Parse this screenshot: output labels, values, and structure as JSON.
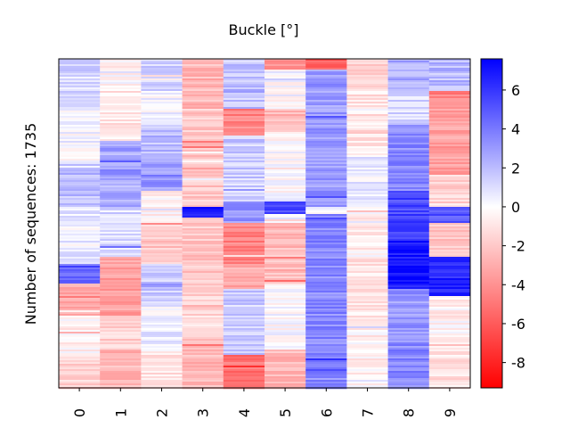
{
  "chart_data": {
    "type": "heatmap",
    "title": "Buckle [°]",
    "ylabel": "Number of sequences: 1735",
    "xlabel": "",
    "columns": [
      "0",
      "1",
      "2",
      "3",
      "4",
      "5",
      "6",
      "7",
      "8",
      "9"
    ],
    "row_count": 1735,
    "colorbar": {
      "min": -9.3,
      "max": 7.6,
      "ticks": [
        6,
        4,
        2,
        0,
        -2,
        -4,
        -6,
        -8
      ],
      "tick_labels": [
        "6",
        "4",
        "2",
        "0",
        "-2",
        "-4",
        "-6",
        "-8"
      ],
      "colors": {
        "low": "#ff0000",
        "mid": "#ffffff",
        "high": "#0000ff"
      }
    },
    "column_profiles": [
      {
        "column": "0",
        "segments": [
          [
            0,
            0.05,
            1.5
          ],
          [
            0.05,
            0.18,
            1.0
          ],
          [
            0.18,
            0.32,
            0.2
          ],
          [
            0.32,
            0.45,
            2.0
          ],
          [
            0.45,
            0.62,
            0.5
          ],
          [
            0.62,
            0.68,
            4.5
          ],
          [
            0.68,
            0.78,
            -3.0
          ],
          [
            0.78,
            0.9,
            -0.5
          ],
          [
            0.9,
            1.0,
            -1.5
          ]
        ]
      },
      {
        "column": "1",
        "segments": [
          [
            0,
            0.1,
            -0.3
          ],
          [
            0.1,
            0.25,
            -0.8
          ],
          [
            0.25,
            0.35,
            3.0
          ],
          [
            0.35,
            0.45,
            2.5
          ],
          [
            0.45,
            0.6,
            1.0
          ],
          [
            0.6,
            0.78,
            -3.5
          ],
          [
            0.78,
            0.88,
            -1.5
          ],
          [
            0.88,
            1.0,
            -2.5
          ]
        ]
      },
      {
        "column": "2",
        "segments": [
          [
            0,
            0.1,
            1.5
          ],
          [
            0.1,
            0.2,
            0.3
          ],
          [
            0.2,
            0.3,
            2.0
          ],
          [
            0.3,
            0.4,
            3.0
          ],
          [
            0.4,
            0.5,
            -0.5
          ],
          [
            0.5,
            0.62,
            -2.0
          ],
          [
            0.62,
            0.75,
            1.5
          ],
          [
            0.75,
            0.88,
            0.5
          ],
          [
            0.88,
            1.0,
            -1.0
          ]
        ]
      },
      {
        "column": "3",
        "segments": [
          [
            0,
            0.15,
            -2.5
          ],
          [
            0.15,
            0.45,
            -2.0
          ],
          [
            0.45,
            0.48,
            7.0
          ],
          [
            0.48,
            0.7,
            -2.0
          ],
          [
            0.7,
            0.85,
            -1.5
          ],
          [
            0.85,
            1.0,
            -2.5
          ]
        ]
      },
      {
        "column": "4",
        "segments": [
          [
            0,
            0.15,
            1.8
          ],
          [
            0.15,
            0.23,
            -4.5
          ],
          [
            0.23,
            0.43,
            1.5
          ],
          [
            0.43,
            0.5,
            3.0
          ],
          [
            0.5,
            0.62,
            -4.5
          ],
          [
            0.62,
            0.7,
            -3.0
          ],
          [
            0.7,
            0.9,
            1.5
          ],
          [
            0.9,
            1.0,
            -5.0
          ]
        ]
      },
      {
        "column": "5",
        "segments": [
          [
            0,
            0.03,
            -4.0
          ],
          [
            0.03,
            0.15,
            0.0
          ],
          [
            0.15,
            0.22,
            -2.5
          ],
          [
            0.22,
            0.43,
            0.0
          ],
          [
            0.43,
            0.47,
            5.5
          ],
          [
            0.47,
            0.5,
            0.0
          ],
          [
            0.5,
            0.68,
            -2.5
          ],
          [
            0.68,
            0.88,
            0.0
          ],
          [
            0.88,
            1.0,
            -2.5
          ]
        ]
      },
      {
        "column": "6",
        "segments": [
          [
            0,
            0.03,
            -6.0
          ],
          [
            0.03,
            0.45,
            3.0
          ],
          [
            0.45,
            0.47,
            0.0
          ],
          [
            0.47,
            1.0,
            3.5
          ]
        ]
      },
      {
        "column": "7",
        "segments": [
          [
            0,
            0.05,
            -2.0
          ],
          [
            0.05,
            0.3,
            -1.0
          ],
          [
            0.3,
            0.45,
            0.5
          ],
          [
            0.45,
            0.6,
            -0.5
          ],
          [
            0.6,
            0.8,
            -1.0
          ],
          [
            0.8,
            1.0,
            -0.5
          ]
        ]
      },
      {
        "column": "8",
        "segments": [
          [
            0,
            0.1,
            2.5
          ],
          [
            0.1,
            0.2,
            1.0
          ],
          [
            0.2,
            0.4,
            3.5
          ],
          [
            0.4,
            0.55,
            5.5
          ],
          [
            0.55,
            0.7,
            7.0
          ],
          [
            0.7,
            0.85,
            3.0
          ],
          [
            0.85,
            1.0,
            3.5
          ]
        ]
      },
      {
        "column": "9",
        "segments": [
          [
            0,
            0.1,
            2.0
          ],
          [
            0.1,
            0.15,
            -4.5
          ],
          [
            0.15,
            0.35,
            -3.5
          ],
          [
            0.35,
            0.45,
            -1.5
          ],
          [
            0.45,
            0.5,
            5.0
          ],
          [
            0.5,
            0.6,
            -2.0
          ],
          [
            0.6,
            0.72,
            6.5
          ],
          [
            0.72,
            0.85,
            -0.5
          ],
          [
            0.85,
            1.0,
            -1.0
          ]
        ]
      }
    ]
  }
}
